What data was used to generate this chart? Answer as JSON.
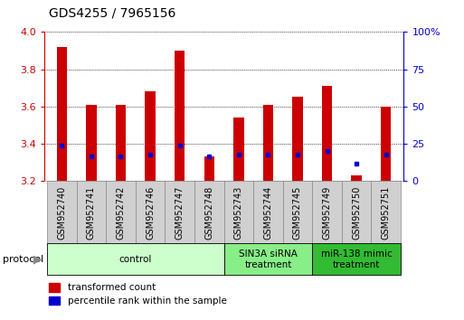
{
  "title": "GDS4255 / 7965156",
  "samples": [
    "GSM952740",
    "GSM952741",
    "GSM952742",
    "GSM952746",
    "GSM952747",
    "GSM952748",
    "GSM952743",
    "GSM952744",
    "GSM952745",
    "GSM952749",
    "GSM952750",
    "GSM952751"
  ],
  "red_values": [
    3.92,
    3.61,
    3.61,
    3.68,
    3.9,
    3.33,
    3.54,
    3.61,
    3.65,
    3.71,
    3.23,
    3.6
  ],
  "blue_values": [
    3.39,
    3.33,
    3.33,
    3.34,
    3.39,
    3.33,
    3.34,
    3.34,
    3.34,
    3.36,
    3.29,
    3.34
  ],
  "y_min": 3.2,
  "y_max": 4.0,
  "y_ticks": [
    3.2,
    3.4,
    3.6,
    3.8,
    4.0
  ],
  "y2_ticks": [
    0,
    25,
    50,
    75,
    100
  ],
  "y2_labels": [
    "0",
    "25",
    "50",
    "75",
    "100%"
  ],
  "bar_color": "#cc0000",
  "dot_color": "#0000cc",
  "group_configs": [
    {
      "start": 0,
      "end": 5,
      "color": "#ccffcc",
      "label": "control"
    },
    {
      "start": 6,
      "end": 8,
      "color": "#88ee88",
      "label": "SIN3A siRNA\ntreatment"
    },
    {
      "start": 9,
      "end": 11,
      "color": "#33bb33",
      "label": "miR-138 mimic\ntreatment"
    }
  ],
  "protocol_label": "protocol",
  "legend_red": "transformed count",
  "legend_blue": "percentile rank within the sample",
  "bar_width": 0.35,
  "y_label_color": "#cc0000",
  "y2_label_color": "#0000cc",
  "tick_label_fontsize": 7,
  "title_fontsize": 10,
  "group_label_fontsize": 7.5,
  "legend_fontsize": 7.5
}
